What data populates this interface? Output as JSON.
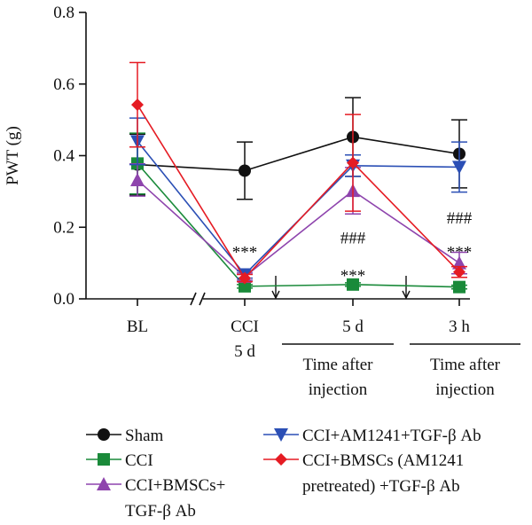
{
  "chart_data": {
    "type": "line",
    "ylabel": "PWT (g)",
    "ylim": [
      0,
      0.8
    ],
    "yticks": [
      "0.0",
      "0.2",
      "0.4",
      "0.6",
      "0.8"
    ],
    "categories": [
      {
        "lines": [
          "BL"
        ]
      },
      {
        "lines": [
          "CCI",
          "5 d"
        ]
      },
      {
        "lines": [
          "5 d"
        ]
      },
      {
        "lines": [
          "3 h"
        ]
      }
    ],
    "time_labels": [
      {
        "lines": [
          "Time after",
          "injection"
        ]
      },
      {
        "lines": [
          "Time after",
          "injection"
        ]
      }
    ],
    "series": [
      {
        "name": "Sham",
        "color": "#111111",
        "marker": "circle",
        "values": [
          0.375,
          0.358,
          0.452,
          0.405
        ],
        "errors": [
          0.085,
          0.08,
          0.11,
          0.095
        ]
      },
      {
        "name": "CCI",
        "color": "#1a8a3a",
        "marker": "square",
        "values": [
          0.378,
          0.035,
          0.04,
          0.033
        ],
        "errors": [
          0.085,
          0.005,
          0.005,
          0.005
        ]
      },
      {
        "name": "CCI+BMSCs+TGF-β Ab",
        "color": "#8e44ad",
        "marker": "triangle-up",
        "values": [
          0.332,
          0.062,
          0.302,
          0.1
        ],
        "errors": [
          0.045,
          0.01,
          0.065,
          0.03
        ]
      },
      {
        "name": "CCI+AM1241+TGF-β Ab",
        "color": "#2b4fb5",
        "marker": "triangle-down",
        "values": [
          0.44,
          0.068,
          0.372,
          0.368
        ],
        "errors": [
          0.065,
          0.01,
          0.03,
          0.07
        ]
      },
      {
        "name": "CCI+BMSCs (AM1241 pretreated) +TGF-β Ab",
        "color": "#e51b23",
        "marker": "diamond",
        "values": [
          0.542,
          0.058,
          0.38,
          0.075
        ],
        "errors": [
          0.118,
          0.01,
          0.135,
          0.015
        ]
      }
    ],
    "annotations": [
      {
        "text": "***",
        "x_index": 1,
        "y": 0.13
      },
      {
        "text": "***",
        "x_index": 2,
        "y": 0.065
      },
      {
        "text": "###",
        "x_index": 2,
        "y": 0.17
      },
      {
        "text": "###",
        "x_index": 3,
        "y": 0.225
      },
      {
        "text": "***",
        "x_index": 3,
        "y": 0.13
      }
    ],
    "injection_markers": 2,
    "legend": {
      "placement": "bottom",
      "items": [
        {
          "series": 0,
          "lines": [
            "Sham"
          ]
        },
        {
          "series": 3,
          "lines": [
            "CCI+AM1241+TGF-β Ab"
          ]
        },
        {
          "series": 1,
          "lines": [
            "CCI"
          ]
        },
        {
          "series": 4,
          "lines": [
            "CCI+BMSCs (AM1241",
            "pretreated) +TGF-β Ab"
          ]
        },
        {
          "series": 2,
          "lines": [
            "CCI+BMSCs+",
            "TGF-β Ab"
          ]
        }
      ]
    }
  }
}
